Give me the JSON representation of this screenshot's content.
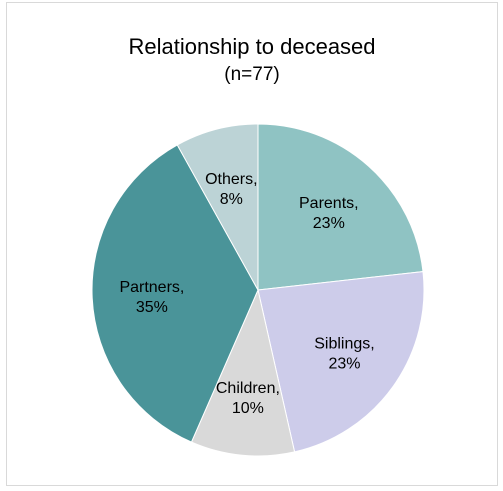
{
  "chart_data": {
    "type": "pie",
    "title": "Relationship to deceased",
    "subtitle": "(n=77)",
    "slices": [
      {
        "label": "Parents",
        "value": 23,
        "color": "#8FC3C3"
      },
      {
        "label": "Siblings",
        "value": 23,
        "color": "#CDCCEA"
      },
      {
        "label": "Children",
        "value": 10,
        "color": "#D9D9D9"
      },
      {
        "label": "Partners",
        "value": 35,
        "color": "#4A9499"
      },
      {
        "label": "Others",
        "value": 8,
        "color": "#BCD3D6"
      }
    ],
    "value_suffix": "%",
    "label_separator": ",",
    "start_angle_deg": 0,
    "direction": "clockwise",
    "legend": "none"
  }
}
